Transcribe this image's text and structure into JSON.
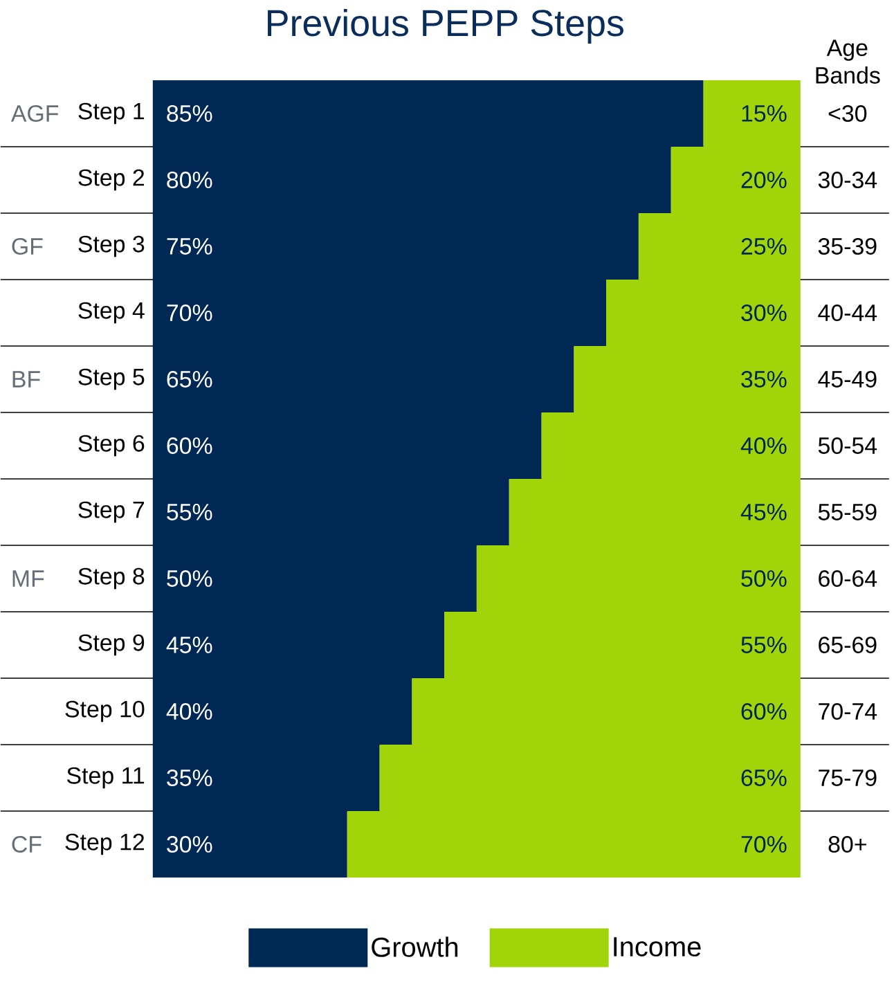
{
  "chart_data": {
    "type": "bar",
    "orientation": "horizontal",
    "stacked": true,
    "title": "Previous PEPP Steps",
    "categories": [
      "Step 1",
      "Step 2",
      "Step 3",
      "Step 4",
      "Step 5",
      "Step 6",
      "Step 7",
      "Step 8",
      "Step 9",
      "Step 10",
      "Step 11",
      "Step 12"
    ],
    "series": [
      {
        "name": "Growth",
        "color": "#002855",
        "values": [
          85,
          80,
          75,
          70,
          65,
          60,
          55,
          50,
          45,
          40,
          35,
          30
        ],
        "value_labels": [
          "85%",
          "80%",
          "75%",
          "70%",
          "65%",
          "60%",
          "55%",
          "50%",
          "45%",
          "40%",
          "35%",
          "30%"
        ]
      },
      {
        "name": "Income",
        "color": "#a2d40a",
        "values": [
          15,
          20,
          25,
          30,
          35,
          40,
          45,
          50,
          55,
          60,
          65,
          70
        ],
        "value_labels": [
          "15%",
          "20%",
          "25%",
          "30%",
          "35%",
          "40%",
          "45%",
          "50%",
          "55%",
          "60%",
          "65%",
          "70%"
        ]
      }
    ],
    "legend": "bottom",
    "annotations": [
      "Age Bands",
      "<30",
      "30-34",
      "35-39",
      "40-44",
      "45-49",
      "50-54",
      "55-59",
      "60-64",
      "65-69",
      "70-74",
      "75-79",
      "80+",
      "AGF",
      "GF",
      "BF",
      "MF",
      "CF"
    ]
  }
}
